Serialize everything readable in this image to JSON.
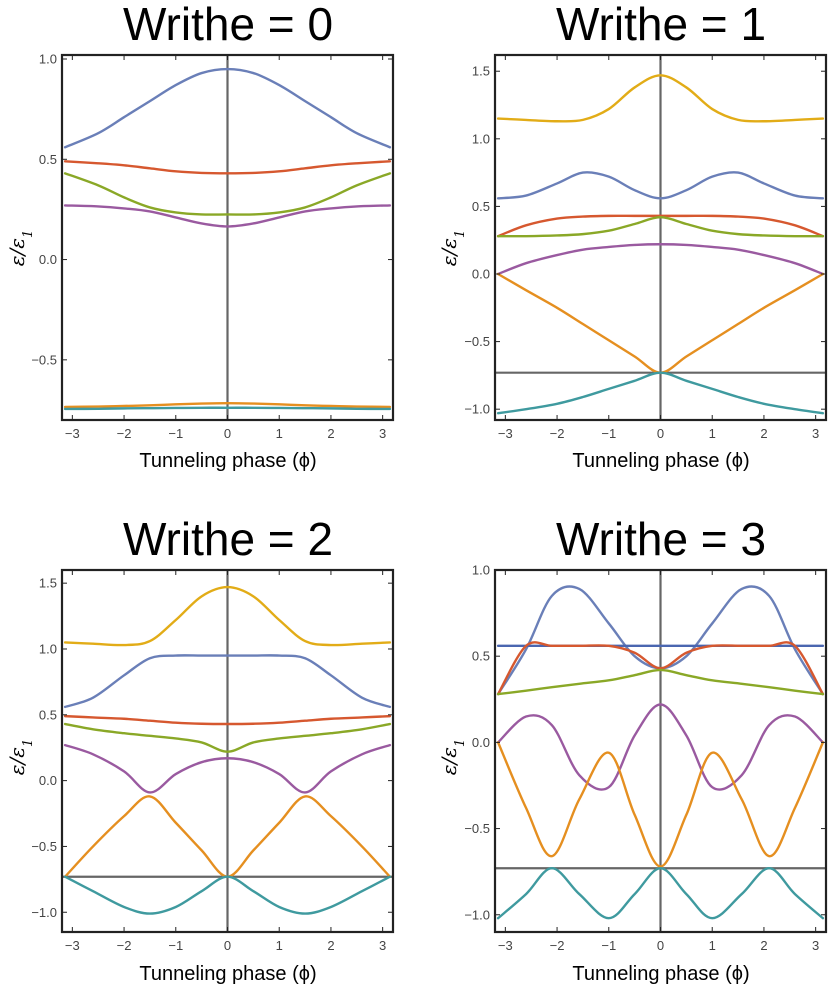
{
  "chart_data": [
    {
      "type": "line",
      "title": "Writhe = 0",
      "xlabel": "Tunneling phase (ϕ)",
      "ylabel": "ε/ε1",
      "xlim": [
        -3.2,
        3.2
      ],
      "ylim": [
        -0.8,
        1.02
      ],
      "xticks": [
        -3,
        -2,
        -1,
        0,
        1,
        2,
        3
      ],
      "xtick_labels": [
        "−3",
        "−2",
        "−1",
        "0",
        "1",
        "2",
        "3"
      ],
      "yticks": [
        -0.5,
        0,
        0.5,
        1.0
      ],
      "ytick_labels": [
        "−0.5",
        "0.0",
        "0.5",
        "1.0"
      ],
      "hline": null,
      "x": [
        -3.14,
        -2.5,
        -2,
        -1.5,
        -1,
        -0.5,
        0,
        0.5,
        1,
        1.5,
        2,
        2.5,
        3.14
      ],
      "series": [
        {
          "color": "#6a7fb8",
          "values": [
            0.56,
            0.63,
            0.71,
            0.79,
            0.87,
            0.93,
            0.95,
            0.93,
            0.87,
            0.79,
            0.71,
            0.63,
            0.56
          ]
        },
        {
          "color": "#d6582f",
          "values": [
            0.49,
            0.48,
            0.47,
            0.455,
            0.44,
            0.432,
            0.43,
            0.432,
            0.44,
            0.455,
            0.47,
            0.48,
            0.49
          ]
        },
        {
          "color": "#8aa827",
          "values": [
            0.43,
            0.37,
            0.31,
            0.26,
            0.235,
            0.225,
            0.225,
            0.225,
            0.235,
            0.26,
            0.31,
            0.37,
            0.43
          ]
        },
        {
          "color": "#9a5aa0",
          "values": [
            0.27,
            0.265,
            0.255,
            0.24,
            0.21,
            0.18,
            0.165,
            0.18,
            0.21,
            0.24,
            0.255,
            0.265,
            0.27
          ]
        },
        {
          "color": "#e58f20",
          "values": [
            -0.735,
            -0.733,
            -0.73,
            -0.727,
            -0.722,
            -0.718,
            -0.716,
            -0.718,
            -0.722,
            -0.727,
            -0.73,
            -0.733,
            -0.735
          ]
        },
        {
          "color": "#3f9a9f",
          "values": [
            -0.745,
            -0.744,
            -0.742,
            -0.741,
            -0.74,
            -0.739,
            -0.739,
            -0.739,
            -0.74,
            -0.741,
            -0.742,
            -0.744,
            -0.745
          ]
        }
      ]
    },
    {
      "type": "line",
      "title": "Writhe = 1",
      "xlabel": "Tunneling phase (ϕ)",
      "ylabel": "ε/ε1",
      "xlim": [
        -3.2,
        3.2
      ],
      "ylim": [
        -1.08,
        1.62
      ],
      "xticks": [
        -3,
        -2,
        -1,
        0,
        1,
        2,
        3
      ],
      "xtick_labels": [
        "−3",
        "−2",
        "−1",
        "0",
        "1",
        "2",
        "3"
      ],
      "yticks": [
        -1.0,
        -0.5,
        0,
        0.5,
        1.0,
        1.5
      ],
      "ytick_labels": [
        "−1.0",
        "−0.5",
        "0.0",
        "0.5",
        "1.0",
        "1.5"
      ],
      "hline": -0.73,
      "x": [
        -3.14,
        -2.6,
        -2,
        -1.5,
        -1,
        -0.5,
        0,
        0.5,
        1,
        1.5,
        2,
        2.6,
        3.14
      ],
      "series": [
        {
          "color": "#e2ac17",
          "values": [
            1.15,
            1.14,
            1.13,
            1.14,
            1.22,
            1.38,
            1.47,
            1.38,
            1.22,
            1.14,
            1.13,
            1.14,
            1.15
          ]
        },
        {
          "color": "#6a7fb8",
          "values": [
            0.56,
            0.58,
            0.67,
            0.75,
            0.72,
            0.62,
            0.56,
            0.62,
            0.72,
            0.75,
            0.67,
            0.58,
            0.56
          ]
        },
        {
          "color": "#d6582f",
          "values": [
            0.28,
            0.36,
            0.41,
            0.425,
            0.43,
            0.43,
            0.43,
            0.43,
            0.43,
            0.425,
            0.41,
            0.36,
            0.28
          ]
        },
        {
          "color": "#8aa827",
          "values": [
            0.28,
            0.28,
            0.285,
            0.295,
            0.32,
            0.37,
            0.42,
            0.37,
            0.32,
            0.295,
            0.285,
            0.28,
            0.28
          ]
        },
        {
          "color": "#9a5aa0",
          "values": [
            0.0,
            0.08,
            0.14,
            0.18,
            0.2,
            0.215,
            0.22,
            0.215,
            0.2,
            0.18,
            0.14,
            0.08,
            0.0
          ]
        },
        {
          "color": "#e58f20",
          "values": [
            0.0,
            -0.12,
            -0.25,
            -0.37,
            -0.49,
            -0.61,
            -0.73,
            -0.61,
            -0.49,
            -0.37,
            -0.25,
            -0.12,
            0.0
          ]
        },
        {
          "color": "#3f9a9f",
          "values": [
            -1.03,
            -1.0,
            -0.96,
            -0.91,
            -0.85,
            -0.79,
            -0.73,
            -0.79,
            -0.85,
            -0.91,
            -0.96,
            -1.0,
            -1.03
          ]
        }
      ]
    },
    {
      "type": "line",
      "title": "Writhe = 2",
      "xlabel": "Tunneling phase (ϕ)",
      "ylabel": "ε/ε1",
      "xlim": [
        -3.2,
        3.2
      ],
      "ylim": [
        -1.15,
        1.6
      ],
      "xticks": [
        -3,
        -2,
        -1,
        0,
        1,
        2,
        3
      ],
      "xtick_labels": [
        "−3",
        "−2",
        "−1",
        "0",
        "1",
        "2",
        "3"
      ],
      "yticks": [
        -1.0,
        -0.5,
        0,
        0.5,
        1.0,
        1.5
      ],
      "ytick_labels": [
        "−1.0",
        "−0.5",
        "0.0",
        "0.5",
        "1.0",
        "1.5"
      ],
      "hline": -0.73,
      "x": [
        -3.14,
        -2.6,
        -2,
        -1.5,
        -1,
        -0.5,
        0,
        0.5,
        1,
        1.5,
        2,
        2.6,
        3.14
      ],
      "series": [
        {
          "color": "#e2ac17",
          "values": [
            1.05,
            1.04,
            1.03,
            1.06,
            1.22,
            1.4,
            1.47,
            1.4,
            1.22,
            1.06,
            1.03,
            1.04,
            1.05
          ]
        },
        {
          "color": "#6a7fb8",
          "values": [
            0.56,
            0.63,
            0.8,
            0.93,
            0.95,
            0.95,
            0.95,
            0.95,
            0.95,
            0.93,
            0.8,
            0.63,
            0.56
          ]
        },
        {
          "color": "#d6582f",
          "values": [
            0.49,
            0.48,
            0.47,
            0.455,
            0.44,
            0.432,
            0.43,
            0.432,
            0.44,
            0.455,
            0.47,
            0.48,
            0.49
          ]
        },
        {
          "color": "#8aa827",
          "values": [
            0.43,
            0.39,
            0.36,
            0.34,
            0.32,
            0.29,
            0.22,
            0.29,
            0.32,
            0.34,
            0.36,
            0.39,
            0.43
          ]
        },
        {
          "color": "#9a5aa0",
          "values": [
            0.27,
            0.2,
            0.07,
            -0.09,
            0.05,
            0.14,
            0.17,
            0.14,
            0.05,
            -0.09,
            0.07,
            0.2,
            0.27
          ]
        },
        {
          "color": "#e58f20",
          "values": [
            -0.73,
            -0.5,
            -0.27,
            -0.12,
            -0.32,
            -0.53,
            -0.73,
            -0.53,
            -0.32,
            -0.12,
            -0.27,
            -0.5,
            -0.73
          ]
        },
        {
          "color": "#3f9a9f",
          "values": [
            -0.73,
            -0.84,
            -0.96,
            -1.01,
            -0.96,
            -0.84,
            -0.73,
            -0.84,
            -0.96,
            -1.01,
            -0.96,
            -0.84,
            -0.73
          ]
        }
      ]
    },
    {
      "type": "line",
      "title": "Writhe = 3",
      "xlabel": "Tunneling phase (ϕ)",
      "ylabel": "ε/ε1",
      "xlim": [
        -3.2,
        3.2
      ],
      "ylim": [
        -1.1,
        1.0
      ],
      "xticks": [
        -3,
        -2,
        -1,
        0,
        1,
        2,
        3
      ],
      "xtick_labels": [
        "−3",
        "−2",
        "−1",
        "0",
        "1",
        "2",
        "3"
      ],
      "yticks": [
        -1.0,
        -0.5,
        0,
        0.5,
        1.0
      ],
      "ytick_labels": [
        "−1.0",
        "−0.5",
        "0.0",
        "0.5",
        "1.0"
      ],
      "hline": -0.73,
      "x": [
        -3.14,
        -2.6,
        -2.1,
        -1.57,
        -1.0,
        -0.5,
        0,
        0.5,
        1.0,
        1.57,
        2.1,
        2.6,
        3.14
      ],
      "series": [
        {
          "color": "#6a7fb8",
          "values": [
            0.28,
            0.54,
            0.85,
            0.89,
            0.69,
            0.5,
            0.43,
            0.5,
            0.69,
            0.89,
            0.85,
            0.54,
            0.28
          ]
        },
        {
          "color": "#4a66b0",
          "values": [
            0.56,
            0.56,
            0.56,
            0.56,
            0.56,
            0.56,
            0.56,
            0.56,
            0.56,
            0.56,
            0.56,
            0.56,
            0.56
          ]
        },
        {
          "color": "#d6582f",
          "values": [
            0.28,
            0.56,
            0.56,
            0.56,
            0.56,
            0.52,
            0.43,
            0.52,
            0.56,
            0.56,
            0.56,
            0.56,
            0.28
          ]
        },
        {
          "color": "#8aa827",
          "values": [
            0.28,
            0.3,
            0.32,
            0.34,
            0.36,
            0.39,
            0.42,
            0.39,
            0.36,
            0.34,
            0.32,
            0.3,
            0.28
          ]
        },
        {
          "color": "#9a5aa0",
          "values": [
            0.0,
            0.15,
            0.1,
            -0.19,
            -0.26,
            0.04,
            0.22,
            0.04,
            -0.26,
            -0.19,
            0.1,
            0.15,
            0.0
          ]
        },
        {
          "color": "#e58f20",
          "values": [
            0.0,
            -0.38,
            -0.66,
            -0.33,
            -0.06,
            -0.42,
            -0.72,
            -0.42,
            -0.06,
            -0.33,
            -0.66,
            -0.38,
            0.0
          ]
        },
        {
          "color": "#3f9a9f",
          "values": [
            -1.02,
            -0.88,
            -0.73,
            -0.88,
            -1.02,
            -0.88,
            -0.73,
            -0.88,
            -1.02,
            -0.88,
            -0.73,
            -0.88,
            -1.02
          ]
        }
      ]
    }
  ]
}
